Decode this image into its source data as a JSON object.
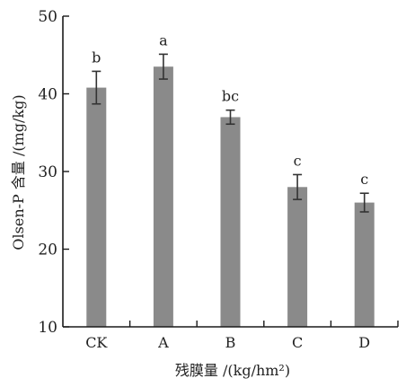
{
  "chart_data": {
    "type": "bar",
    "categories": [
      "CK",
      "A",
      "B",
      "C",
      "D"
    ],
    "values": [
      40.8,
      43.5,
      37.0,
      28.0,
      26.0
    ],
    "errors": [
      2.1,
      1.6,
      0.9,
      1.6,
      1.2
    ],
    "significance": [
      "b",
      "a",
      "bc",
      "c",
      "c"
    ],
    "title": "",
    "xlabel": "残膜量 /(kg/hm²)",
    "ylabel": "Olsen-P 含量 /(mg/kg)",
    "ylim": [
      10,
      50
    ],
    "yticks": [
      10,
      20,
      30,
      40,
      50
    ],
    "grid": false,
    "legend": "none",
    "bar_color": "#8a8a8a",
    "error_bar_color": "#333333",
    "axis_color": "#1a1a1a"
  }
}
